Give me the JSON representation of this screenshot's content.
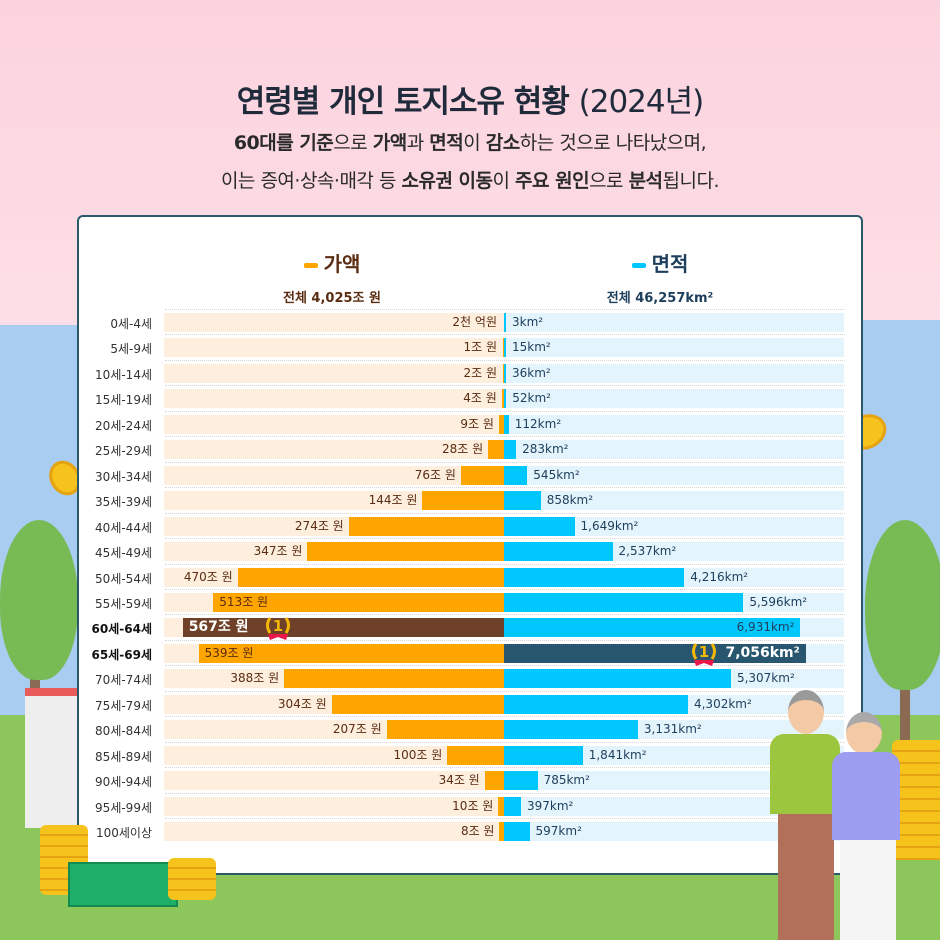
{
  "header": {
    "title_main": "연령별 개인 토지소유 현황",
    "title_year": "(2024년)",
    "subtitle_lines": [
      [
        {
          "t": "60대를 기준",
          "b": true
        },
        {
          "t": "으로 ",
          "b": false
        },
        {
          "t": "가액",
          "b": true
        },
        {
          "t": "과 ",
          "b": false
        },
        {
          "t": "면적",
          "b": true
        },
        {
          "t": "이 ",
          "b": false
        },
        {
          "t": "감소",
          "b": true
        },
        {
          "t": "하는 것으로 나타났으며,",
          "b": false
        }
      ],
      [
        {
          "t": "이는 증여·상속·매각 등 ",
          "b": false
        },
        {
          "t": "소유권 이동",
          "b": true
        },
        {
          "t": "이 ",
          "b": false
        },
        {
          "t": "주요 원인",
          "b": true
        },
        {
          "t": "으로 ",
          "b": false
        },
        {
          "t": "분석",
          "b": true
        },
        {
          "t": "됩니다.",
          "b": false
        }
      ]
    ]
  },
  "legend": {
    "value": {
      "label": "가액",
      "total": "전체 4,025조 원",
      "color": "#ffa500"
    },
    "area": {
      "label": "면적",
      "total": "전체 46,257km²",
      "color": "#00c8ff"
    }
  },
  "colors": {
    "value_bar": "#ffa500",
    "value_track": "#fdeedd",
    "value_top": "#6e4128",
    "value_text": "#5a2c12",
    "area_bar": "#00c8ff",
    "area_track": "#e3f4fc",
    "area_top": "#27566e",
    "area_text": "#1d3e5c"
  },
  "chart_data": {
    "type": "bar",
    "orientation": "horizontal-butterfly",
    "categories": [
      "0세-4세",
      "5세-9세",
      "10세-14세",
      "15세-19세",
      "20세-24세",
      "25세-29세",
      "30세-34세",
      "35세-39세",
      "40세-44세",
      "45세-49세",
      "50세-54세",
      "55세-59세",
      "60세-64세",
      "65세-69세",
      "70세-74세",
      "75세-79세",
      "80세-84세",
      "85세-89세",
      "90세-94세",
      "95세-99세",
      "100세이상"
    ],
    "series": [
      {
        "name": "가액",
        "unit": "조 원",
        "values": [
          0.2,
          1,
          2,
          4,
          9,
          28,
          76,
          144,
          274,
          347,
          470,
          513,
          567,
          539,
          388,
          304,
          207,
          100,
          34,
          10,
          8
        ],
        "labels": [
          "2천 억원",
          "1조 원",
          "2조 원",
          "4조 원",
          "9조 원",
          "28조 원",
          "76조 원",
          "144조 원",
          "274조 원",
          "347조 원",
          "470조 원",
          "513조 원",
          "567조 원",
          "539조 원",
          "388조 원",
          "304조 원",
          "207조 원",
          "100조 원",
          "34조 원",
          "10조 원",
          "8조 원"
        ],
        "highlight_index": 12,
        "highlight_badge": "1"
      },
      {
        "name": "면적",
        "unit": "km²",
        "values": [
          3,
          15,
          36,
          52,
          112,
          283,
          545,
          858,
          1649,
          2537,
          4216,
          5596,
          6931,
          7056,
          5307,
          4302,
          3131,
          1841,
          785,
          397,
          597
        ],
        "labels": [
          "3km²",
          "15km²",
          "36km²",
          "52km²",
          "112km²",
          "283km²",
          "545km²",
          "858km²",
          "1,649km²",
          "2,537km²",
          "4,216km²",
          "5,596km²",
          "6,931km²",
          "7,056km²",
          "5,307km²",
          "4,302km²",
          "3,131km²",
          "1,841km²",
          "785km²",
          "397km²",
          "597km²"
        ],
        "highlight_index": 13,
        "highlight_badge": "1"
      }
    ],
    "bold_categories": [
      "60세-64세",
      "65세-69세"
    ],
    "grid": false
  }
}
